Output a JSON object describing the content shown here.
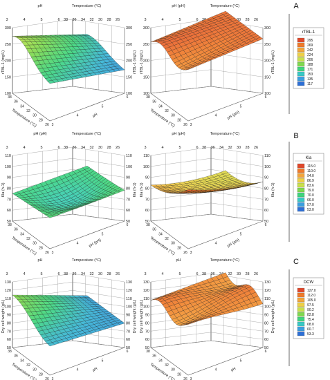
{
  "panel_letters": [
    "A",
    "B",
    "C"
  ],
  "legends": [
    {
      "title": "rTBL-1",
      "ticks": [
        "295",
        "269",
        "242",
        "224",
        "206",
        "188",
        "171",
        "153",
        "135",
        "117"
      ],
      "colors": [
        "#e0472a",
        "#f07a2a",
        "#f3a53a",
        "#eed045",
        "#c9e04a",
        "#7fd94e",
        "#3ed57d",
        "#37c9c6",
        "#3a9fe0",
        "#2d6fd6"
      ]
    },
    {
      "title": "Kla",
      "ticks": [
        "115.0",
        "110.0",
        "94.0",
        "86.9",
        "83.6",
        "79.0",
        "70.0",
        "66.0",
        "57.0",
        "53.0"
      ],
      "colors": [
        "#e0472a",
        "#f07a2a",
        "#f3a53a",
        "#eed045",
        "#c9e04a",
        "#7fd94e",
        "#3ed57d",
        "#37c9c6",
        "#3a9fe0",
        "#2d6fd6"
      ]
    },
    {
      "title": "DCW",
      "ticks": [
        "127.0",
        "112.0",
        "105.0",
        "97.5",
        "90.2",
        "82.8",
        "75.4",
        "68.0",
        "60.7",
        "53.3"
      ],
      "colors": [
        "#e0472a",
        "#f07a2a",
        "#f3a53a",
        "#eed045",
        "#c9e04a",
        "#7fd94e",
        "#3ed57d",
        "#37c9c6",
        "#3a9fe0",
        "#2d6fd6"
      ]
    }
  ],
  "chart_data": [
    {
      "type": "surface",
      "panel": "A",
      "view": "left",
      "surface_colors": "blue-green",
      "top_labels": [
        "pH",
        "Temperature (°C)"
      ],
      "top_ticks": [
        "3",
        "4",
        "5",
        "6",
        "38",
        "36",
        "34",
        "32",
        "30",
        "28",
        "26"
      ],
      "zlabel_left": "rTBL-1 (mg/L)",
      "zlabel_right": "rTBL-1 (mg/L)",
      "zticks": [
        "300",
        "250",
        "200",
        "150",
        "100"
      ],
      "xlabel": "Temperature (°C)",
      "ylabel": "pH",
      "xticks": [
        "38",
        "36",
        "34",
        "32",
        "30",
        "28",
        "26"
      ],
      "yticks": [
        "3",
        "4",
        "5",
        "6"
      ]
    },
    {
      "type": "surface",
      "panel": "A",
      "view": "right",
      "surface_colors": "orange-red",
      "top_labels": [
        "pH (pH)",
        "Temperature (°C)"
      ],
      "top_ticks": [
        "3",
        "4",
        "5",
        "6",
        "38",
        "36",
        "34",
        "32",
        "30",
        "28",
        "26"
      ],
      "zlabel_left": "rTBL-1 (mg/L)",
      "zlabel_right": "rTBL-1 (mg/L)",
      "zticks": [
        "300",
        "250",
        "200",
        "150",
        "100"
      ],
      "xlabel": "Temperature (°C)",
      "ylabel": "pH (pH)",
      "xticks": [
        "38",
        "36",
        "34",
        "32",
        "30",
        "28",
        "26"
      ],
      "yticks": [
        "3",
        "4",
        "5",
        "6"
      ]
    },
    {
      "type": "surface",
      "panel": "B",
      "view": "left",
      "surface_colors": "green",
      "top_labels": [
        "pH (pH)",
        "Temperature (°C)"
      ],
      "top_ticks": [
        "3",
        "4",
        "5",
        "6",
        "38",
        "36",
        "34",
        "32",
        "30",
        "28",
        "26"
      ],
      "zlabel_left": "Kla (h-1)",
      "zlabel_right": "Kla (h-1)",
      "zticks": [
        "110",
        "100",
        "90",
        "80",
        "70",
        "60",
        "50"
      ],
      "xlabel": "Temperature (°C)",
      "ylabel": "pH (pH)",
      "xticks": [
        "38",
        "36",
        "34",
        "32",
        "30",
        "28",
        "26"
      ],
      "yticks": [
        "3",
        "4",
        "5",
        "6"
      ]
    },
    {
      "type": "surface",
      "panel": "B",
      "view": "right",
      "surface_colors": "orange",
      "top_labels": [
        "pH (pH)",
        "Temperature (°C)"
      ],
      "top_ticks": [
        "3",
        "4",
        "5",
        "6",
        "38",
        "36",
        "34",
        "32",
        "30",
        "28",
        "26"
      ],
      "zlabel_left": "Kla (h-1)",
      "zlabel_right": "Kla (h-1)",
      "zticks": [
        "110",
        "100",
        "90",
        "80",
        "70",
        "60",
        "50"
      ],
      "xlabel": "Temperature (°C)",
      "ylabel": "pH (pH)",
      "xticks": [
        "38",
        "36",
        "34",
        "32",
        "30",
        "28",
        "26"
      ],
      "yticks": [
        "3",
        "4",
        "5",
        "6"
      ]
    },
    {
      "type": "surface",
      "panel": "C",
      "view": "left",
      "surface_colors": "blue-green",
      "top_labels": [
        "pH",
        "Temperature (°C)"
      ],
      "top_ticks": [
        "3",
        "4",
        "5",
        "6",
        "38",
        "36",
        "34",
        "32",
        "30",
        "28",
        "26"
      ],
      "zlabel_left": "Dry cell weight (g/L)",
      "zlabel_right": "Dry cell weight (g/L)",
      "zticks": [
        "130",
        "120",
        "110",
        "100",
        "90",
        "80",
        "70",
        "60",
        "50"
      ],
      "xlabel": "Temperature (°C)",
      "ylabel": "pH",
      "xticks": [
        "38",
        "36",
        "34",
        "32",
        "30",
        "28",
        "26"
      ],
      "yticks": [
        "3",
        "4",
        "5",
        "6"
      ]
    },
    {
      "type": "surface",
      "panel": "C",
      "view": "right",
      "surface_colors": "orange-yellow",
      "top_labels": [
        "pH",
        "Temperature (°C)"
      ],
      "top_ticks": [
        "3",
        "4",
        "5",
        "6",
        "38",
        "36",
        "34",
        "32",
        "30",
        "28",
        "26"
      ],
      "zlabel_left": "Dry cell weight (g/L)",
      "zlabel_right": "Dry cell weight (g/L)",
      "zticks": [
        "130",
        "120",
        "110",
        "100",
        "90",
        "80",
        "70",
        "60",
        "50"
      ],
      "xlabel": "Temperature (°C)",
      "ylabel": "pH",
      "xticks": [
        "38",
        "36",
        "34",
        "32",
        "30",
        "28",
        "26"
      ],
      "yticks": [
        "3",
        "4",
        "5",
        "6"
      ]
    }
  ]
}
